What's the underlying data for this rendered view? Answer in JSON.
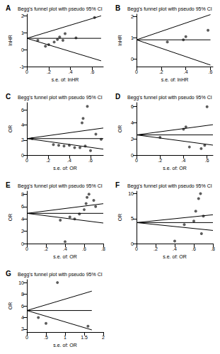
{
  "chart_data": [
    {
      "type": "scatter",
      "label": "A",
      "title": "Begg's funnel plot with pseudo 95% CI",
      "x_label": "s.e. of: lnHR",
      "y_label": "lnHR",
      "xlim": [
        0,
        0.7
      ],
      "xticks": [
        0,
        {
          "value": 0.2,
          "label": ".2"
        },
        {
          "value": 0.4,
          "label": ".4"
        },
        {
          "value": 0.6,
          "label": ".6"
        }
      ],
      "ylim": [
        -1,
        2.1
      ],
      "yticks": [
        -1,
        0,
        1,
        2
      ],
      "series": [
        {
          "type": "scatter",
          "marker": "circle",
          "color": "#333333",
          "x": [
            0.1,
            0.17,
            0.2,
            0.25,
            0.28,
            0.3,
            0.33,
            0.35,
            0.45,
            0.62
          ],
          "values": [
            0.55,
            0.2,
            0.3,
            0.45,
            0.6,
            0.75,
            0.55,
            0.95,
            0.7,
            1.9
          ]
        },
        {
          "type": "line",
          "color": "#000000",
          "x": [
            0,
            0.68
          ],
          "values": [
            0.67,
            0.67
          ]
        },
        {
          "type": "line",
          "color": "#000000",
          "x": [
            0,
            0.68
          ],
          "values": [
            0.67,
            -0.66
          ]
        },
        {
          "type": "line",
          "color": "#000000",
          "x": [
            0,
            0.68
          ],
          "values": [
            0.67,
            2.0
          ]
        }
      ]
    },
    {
      "type": "scatter",
      "label": "B",
      "title": "Begg's funnel plot with pseudo 95% CI",
      "x_label": "s.e. of: lnHR",
      "y_label": "lnHR",
      "xlim": [
        0,
        0.62
      ],
      "xticks": [
        0,
        {
          "value": 0.2,
          "label": ".2"
        },
        {
          "value": 0.4,
          "label": ".4"
        },
        {
          "value": 0.6,
          "label": ".6"
        }
      ],
      "ylim": [
        -0.35,
        2.1
      ],
      "yticks": [
        0,
        1,
        2
      ],
      "series": [
        {
          "type": "scatter",
          "marker": "circle",
          "color": "#333333",
          "x": [
            0.25,
            0.38,
            0.4,
            0.58
          ],
          "values": [
            0.8,
            0.9,
            1.05,
            1.35
          ]
        },
        {
          "type": "line",
          "color": "#000000",
          "x": [
            0,
            0.6
          ],
          "values": [
            0.9,
            0.9
          ]
        },
        {
          "type": "line",
          "color": "#000000",
          "x": [
            0,
            0.6
          ],
          "values": [
            0.9,
            -0.28
          ]
        },
        {
          "type": "line",
          "color": "#000000",
          "x": [
            0,
            0.6
          ],
          "values": [
            0.9,
            2.08
          ]
        }
      ]
    },
    {
      "type": "scatter",
      "label": "C",
      "title": "Begg's funnel plot with pseudo 95% CI",
      "x_label": "s.e. of: OR",
      "y_label": "OR",
      "xlim": [
        0,
        0.72
      ],
      "xticks": [
        0,
        {
          "value": 0.2,
          "label": ".2"
        },
        {
          "value": 0.4,
          "label": ".4"
        },
        {
          "value": 0.6,
          "label": ".6"
        }
      ],
      "ylim": [
        0,
        7
      ],
      "yticks": [
        0,
        2,
        4,
        6
      ],
      "series": [
        {
          "type": "scatter",
          "marker": "circle",
          "color": "#333333",
          "x": [
            0.05,
            0.25,
            0.3,
            0.35,
            0.4,
            0.45,
            0.5,
            0.52,
            0.53,
            0.55,
            0.57,
            0.6,
            0.65,
            0.7
          ],
          "values": [
            2.2,
            1.4,
            1.3,
            1.2,
            1.3,
            1.0,
            1.0,
            4.3,
            4.9,
            1.2,
            6.5,
            0.6,
            2.8,
            2.1
          ]
        },
        {
          "type": "line",
          "color": "#000000",
          "x": [
            0,
            0.72
          ],
          "values": [
            2.2,
            2.2
          ]
        },
        {
          "type": "line",
          "color": "#000000",
          "x": [
            0,
            0.72
          ],
          "values": [
            2.2,
            0.79
          ]
        },
        {
          "type": "line",
          "color": "#000000",
          "x": [
            0,
            0.72
          ],
          "values": [
            2.2,
            3.61
          ]
        }
      ]
    },
    {
      "type": "scatter",
      "label": "D",
      "title": "Begg's funnel plot with pseudo 95% CI",
      "x_label": "s.e. of: OR",
      "y_label": "OR",
      "xlim": [
        0,
        0.65
      ],
      "xticks": [
        0,
        {
          "value": 0.2,
          "label": ".2"
        },
        {
          "value": 0.4,
          "label": ".4"
        },
        {
          "value": 0.6,
          "label": ".6"
        }
      ],
      "ylim": [
        0,
        6.5
      ],
      "yticks": [
        0,
        2,
        4,
        6
      ],
      "series": [
        {
          "type": "scatter",
          "marker": "circle",
          "color": "#333333",
          "x": [
            0.2,
            0.4,
            0.42,
            0.45,
            0.55,
            0.58,
            0.6
          ],
          "values": [
            2.2,
            3.2,
            3.5,
            1.0,
            0.8,
            1.2,
            6.0
          ]
        },
        {
          "type": "line",
          "color": "#000000",
          "x": [
            0,
            0.65
          ],
          "values": [
            2.5,
            2.5
          ]
        },
        {
          "type": "line",
          "color": "#000000",
          "x": [
            0,
            0.65
          ],
          "values": [
            2.5,
            1.23
          ]
        },
        {
          "type": "line",
          "color": "#000000",
          "x": [
            0,
            0.65
          ],
          "values": [
            2.5,
            3.77
          ]
        }
      ]
    },
    {
      "type": "scatter",
      "label": "E",
      "title": "Begg's funnel plot with pseudo 95% CI",
      "x_label": "s.e. of: OR",
      "y_label": "OR",
      "xlim": [
        0,
        0.8
      ],
      "xticks": [
        0,
        {
          "value": 0.2,
          "label": ".2"
        },
        {
          "value": 0.4,
          "label": ".4"
        },
        {
          "value": 0.6,
          "label": ".6"
        },
        {
          "value": 0.8,
          "label": ".8"
        }
      ],
      "ylim": [
        0,
        8.5
      ],
      "yticks": [
        0,
        2,
        4,
        6,
        8
      ],
      "series": [
        {
          "type": "scatter",
          "marker": "circle",
          "color": "#333333",
          "x": [
            0.35,
            0.4,
            0.45,
            0.5,
            0.55,
            0.6,
            0.62,
            0.63,
            0.65,
            0.7,
            0.72
          ],
          "values": [
            3.8,
            0.3,
            4.3,
            4.0,
            4.8,
            5.5,
            6.5,
            7.5,
            8.0,
            7.0,
            6.0
          ]
        },
        {
          "type": "line",
          "color": "#000000",
          "x": [
            0,
            0.8
          ],
          "values": [
            4.9,
            4.9
          ]
        },
        {
          "type": "line",
          "color": "#000000",
          "x": [
            0,
            0.8
          ],
          "values": [
            4.9,
            3.33
          ]
        },
        {
          "type": "line",
          "color": "#000000",
          "x": [
            0,
            0.8
          ],
          "values": [
            4.9,
            6.47
          ]
        }
      ]
    },
    {
      "type": "scatter",
      "label": "F",
      "title": "Begg's funnel plot with pseudo 95% CI",
      "x_label": "s.e. of: OR",
      "y_label": "OR",
      "xlim": [
        0,
        0.8
      ],
      "xticks": [
        0,
        {
          "value": 0.2,
          "label": ".2"
        },
        {
          "value": 0.4,
          "label": ".4"
        },
        {
          "value": 0.6,
          "label": ".6"
        },
        {
          "value": 0.8,
          "label": ".8"
        }
      ],
      "ylim": [
        0,
        10.5
      ],
      "yticks": [
        0,
        5,
        10
      ],
      "series": [
        {
          "type": "scatter",
          "marker": "circle",
          "color": "#333333",
          "x": [
            0.4,
            0.5,
            0.6,
            0.62,
            0.65,
            0.67,
            0.68,
            0.7
          ],
          "values": [
            0.5,
            3.8,
            4.5,
            6.5,
            9.0,
            10.0,
            2.0,
            5.5
          ]
        },
        {
          "type": "line",
          "color": "#000000",
          "x": [
            0,
            0.8
          ],
          "values": [
            4.2,
            4.2
          ]
        },
        {
          "type": "line",
          "color": "#000000",
          "x": [
            0,
            0.8
          ],
          "values": [
            4.2,
            2.63
          ]
        },
        {
          "type": "line",
          "color": "#000000",
          "x": [
            0,
            0.8
          ],
          "values": [
            4.2,
            5.77
          ]
        }
      ]
    },
    {
      "type": "scatter",
      "label": "G",
      "title": "Begg's funnel plot with pseudo 95% CI",
      "x_label": "s.e. of: OR",
      "y_label": "OR",
      "xlim": [
        0,
        2
      ],
      "xticks": [
        0,
        {
          "value": 0.5,
          "label": ".5"
        },
        1,
        1.5,
        2
      ],
      "ylim": [
        1.5,
        10.5
      ],
      "yticks": [
        2,
        4,
        6,
        8,
        10
      ],
      "series": [
        {
          "type": "scatter",
          "marker": "circle",
          "color": "#333333",
          "x": [
            0.3,
            0.5,
            0.8,
            1.6
          ],
          "values": [
            4.0,
            3.0,
            10.0,
            2.5
          ]
        },
        {
          "type": "line",
          "color": "#000000",
          "x": [
            0,
            1.7
          ],
          "values": [
            5.2,
            5.2
          ]
        },
        {
          "type": "line",
          "color": "#000000",
          "x": [
            0,
            1.7
          ],
          "values": [
            5.2,
            1.87
          ]
        },
        {
          "type": "line",
          "color": "#000000",
          "x": [
            0,
            1.7
          ],
          "values": [
            5.2,
            8.53
          ]
        }
      ]
    }
  ]
}
